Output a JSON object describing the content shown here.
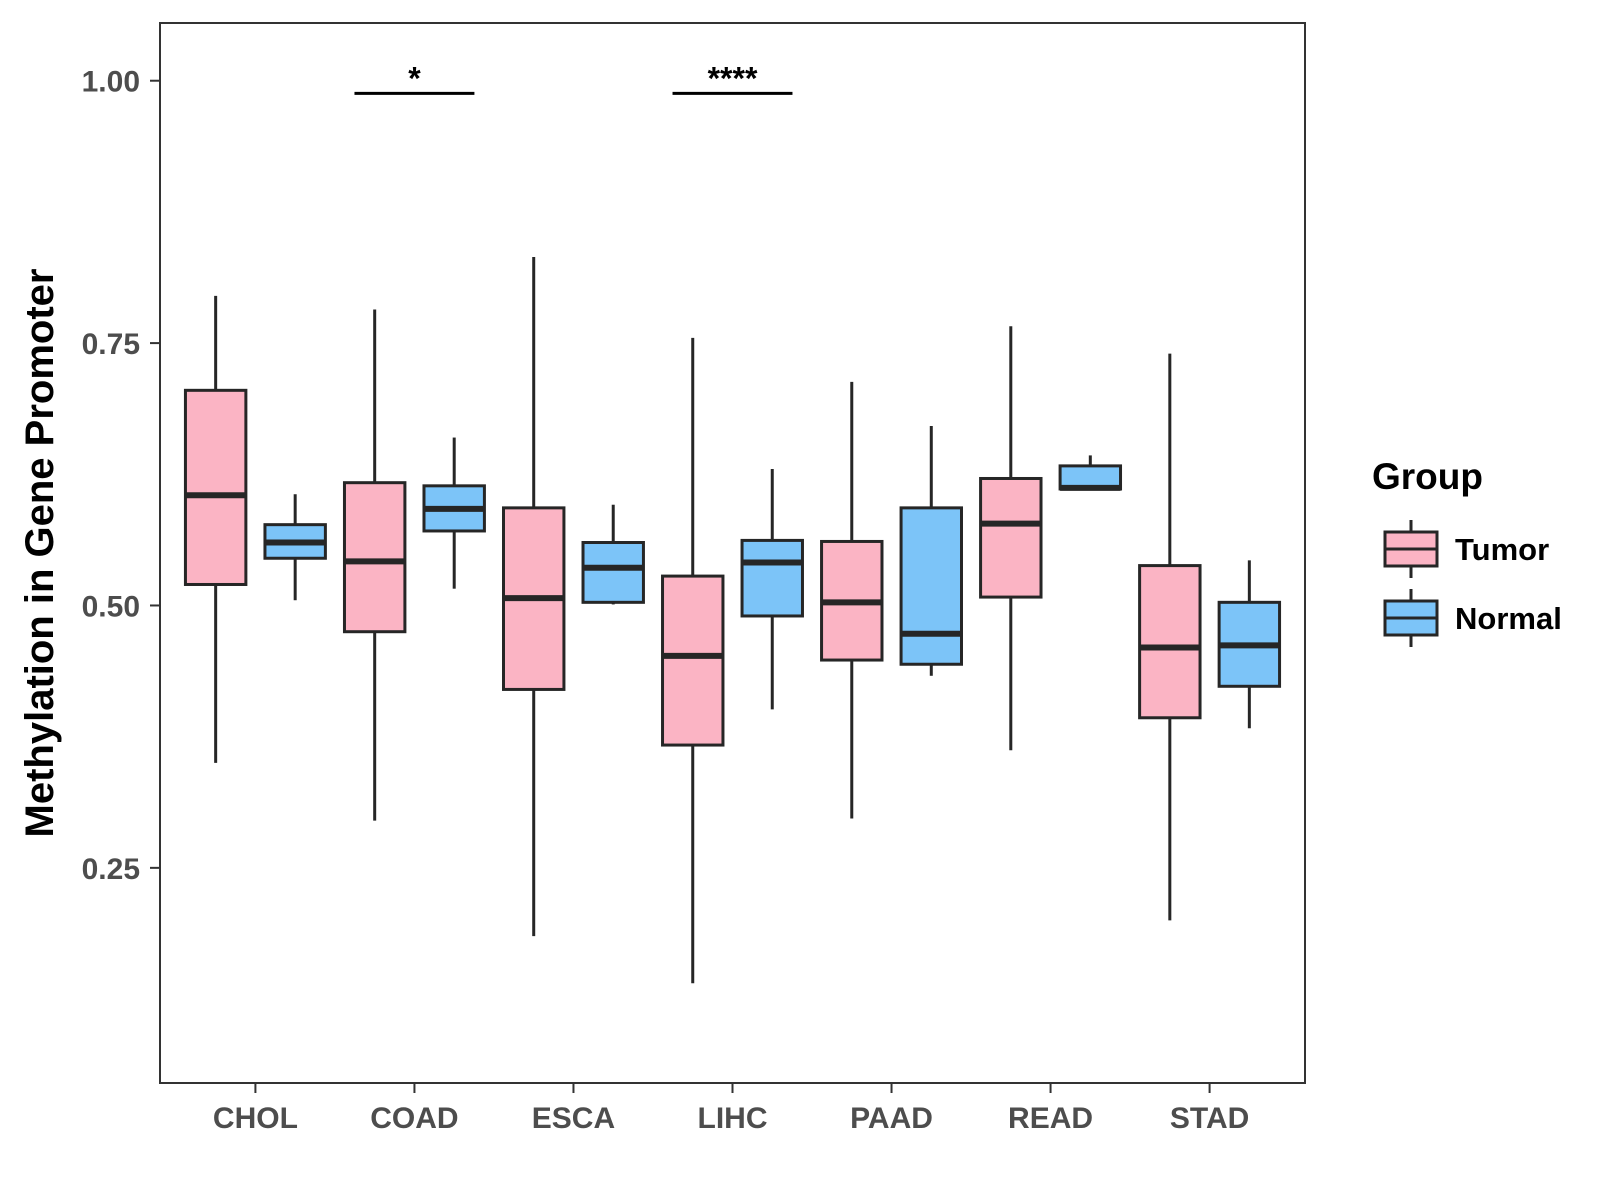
{
  "chart_data": {
    "type": "box",
    "title": "",
    "xlabel": "",
    "ylabel": "Methylation in Gene Promoter",
    "ylim": [
      0.045,
      1.055
    ],
    "yticks": [
      0.25,
      0.5,
      0.75,
      1.0
    ],
    "ytick_labels": [
      "0.25",
      "0.50",
      "0.75",
      "1.00"
    ],
    "categories": [
      "CHOL",
      "COAD",
      "ESCA",
      "LIHC",
      "PAAD",
      "READ",
      "STAD"
    ],
    "legend": {
      "title": "Group",
      "position": "right",
      "entries": [
        "Tumor",
        "Normal"
      ]
    },
    "colors": {
      "Tumor": "#fbb4c4",
      "Normal": "#7cc4f8",
      "stroke": "#262626",
      "panel_border": "#333333"
    },
    "series": [
      {
        "name": "Tumor",
        "boxes": [
          {
            "min": 0.35,
            "q1": 0.52,
            "median": 0.605,
            "q3": 0.705,
            "max": 0.795
          },
          {
            "min": 0.295,
            "q1": 0.475,
            "median": 0.542,
            "q3": 0.617,
            "max": 0.782
          },
          {
            "min": 0.185,
            "q1": 0.42,
            "median": 0.507,
            "q3": 0.593,
            "max": 0.832
          },
          {
            "min": 0.14,
            "q1": 0.367,
            "median": 0.452,
            "q3": 0.528,
            "max": 0.755
          },
          {
            "min": 0.297,
            "q1": 0.448,
            "median": 0.503,
            "q3": 0.561,
            "max": 0.713
          },
          {
            "min": 0.362,
            "q1": 0.508,
            "median": 0.578,
            "q3": 0.621,
            "max": 0.766
          },
          {
            "min": 0.2,
            "q1": 0.393,
            "median": 0.46,
            "q3": 0.538,
            "max": 0.74
          }
        ]
      },
      {
        "name": "Normal",
        "boxes": [
          {
            "min": 0.505,
            "q1": 0.545,
            "median": 0.56,
            "q3": 0.577,
            "max": 0.606
          },
          {
            "min": 0.516,
            "q1": 0.571,
            "median": 0.592,
            "q3": 0.614,
            "max": 0.66
          },
          {
            "min": 0.501,
            "q1": 0.503,
            "median": 0.536,
            "q3": 0.56,
            "max": 0.596
          },
          {
            "min": 0.401,
            "q1": 0.49,
            "median": 0.541,
            "q3": 0.562,
            "max": 0.63
          },
          {
            "min": 0.433,
            "q1": 0.444,
            "median": 0.473,
            "q3": 0.593,
            "max": 0.671
          },
          {
            "min": 0.611,
            "q1": 0.611,
            "median": 0.612,
            "q3": 0.633,
            "max": 0.643
          },
          {
            "min": 0.383,
            "q1": 0.423,
            "median": 0.462,
            "q3": 0.503,
            "max": 0.543
          }
        ]
      }
    ],
    "annotations": [
      {
        "category": "COAD",
        "label": "*",
        "y": 0.988
      },
      {
        "category": "LIHC",
        "label": "****",
        "y": 0.988
      }
    ]
  }
}
